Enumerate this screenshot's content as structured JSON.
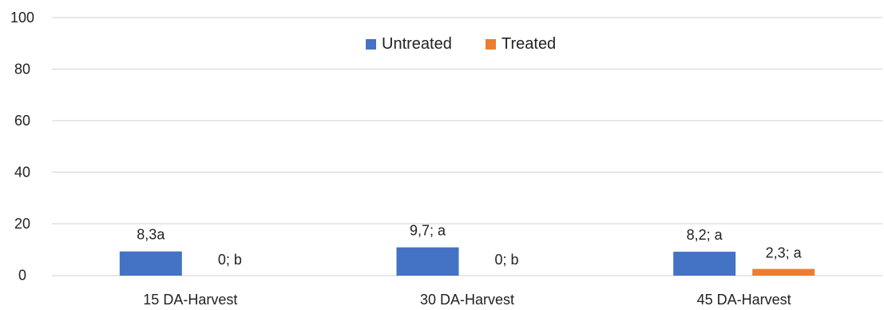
{
  "chart_data": {
    "type": "bar",
    "categories": [
      "15 DA-Harvest",
      "30 DA-Harvest",
      "45 DA-Harvest"
    ],
    "series": [
      {
        "name": "Untreated",
        "color": "#4472C4",
        "values": [
          8.3,
          9.7,
          8.2
        ],
        "labels": [
          "8,3a",
          "9,7; a",
          "8,2; a"
        ]
      },
      {
        "name": "Treated",
        "color": "#ED7D31",
        "values": [
          0,
          0,
          2.3
        ],
        "labels": [
          "0; b",
          "0; b",
          "2,3; a"
        ]
      }
    ],
    "y_ticks": [
      "100",
      "80",
      "60",
      "40",
      "20",
      "0"
    ],
    "grid": true,
    "legend_position": "top-center",
    "gridline_color": "#d9d9d9"
  }
}
